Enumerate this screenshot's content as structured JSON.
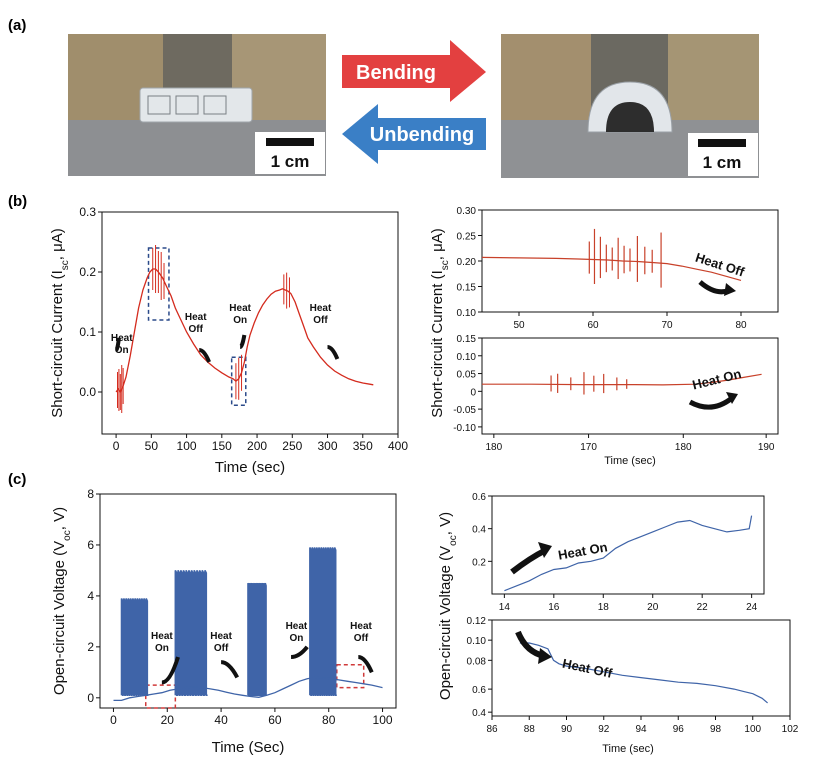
{
  "panels": {
    "a": "(a)",
    "b": "(b)",
    "c": "(c)"
  },
  "photos": {
    "bending_label": "Bending",
    "unbending_label": "Unbending",
    "bending_color": "#e34040",
    "unbending_color": "#3a7fc6",
    "scale_left": "1 cm",
    "scale_right": "1 cm"
  },
  "colors": {
    "current": "#d42b1e",
    "current_zoom": "#c8412a",
    "voltage": "#3f64a8",
    "box_b": "#2b4a8a",
    "box_c": "#d03a3a"
  },
  "chart_data": [
    {
      "id": "b-main",
      "type": "line",
      "xlabel": "Time (sec)",
      "ylabel": "Short-circuit Current (I",
      "ylabel_sub": "sc",
      "ylabel_end": ", μA)",
      "xlim": [
        -20,
        400
      ],
      "ylim": [
        -0.07,
        0.3
      ],
      "xticks": [
        "0",
        "50",
        "100",
        "150",
        "200",
        "250",
        "300",
        "350",
        "400"
      ],
      "yticks": [
        "0.0",
        "0.1",
        "0.2",
        "0.3"
      ],
      "annotations": [
        {
          "line1": "Heat",
          "line2": "On",
          "x": 8,
          "y": 0.085
        },
        {
          "line1": "Heat",
          "line2": "Off",
          "x": 113,
          "y": 0.12
        },
        {
          "line1": "Heat",
          "line2": "On",
          "x": 176,
          "y": 0.135
        },
        {
          "line1": "Heat",
          "line2": "Off",
          "x": 290,
          "y": 0.135
        }
      ],
      "series": [
        {
          "x": [
            0,
            3,
            6,
            10,
            14,
            20,
            26,
            32,
            38,
            44,
            48,
            52,
            56,
            60,
            66,
            72,
            78,
            84,
            90,
            100,
            110,
            120,
            130,
            140,
            150,
            160,
            166,
            170,
            174,
            178,
            182,
            186,
            190,
            196,
            202,
            208,
            214,
            220,
            226,
            232,
            236,
            240,
            244,
            248,
            254,
            260,
            266,
            272,
            280,
            290,
            300,
            310,
            320,
            330,
            340,
            350,
            360,
            365
          ],
          "y": [
            0.0,
            0.005,
            0.0,
            0.01,
            0.025,
            0.06,
            0.1,
            0.14,
            0.17,
            0.19,
            0.2,
            0.205,
            0.205,
            0.2,
            0.19,
            0.175,
            0.16,
            0.14,
            0.125,
            0.1,
            0.08,
            0.062,
            0.05,
            0.04,
            0.032,
            0.025,
            0.022,
            0.018,
            0.022,
            0.032,
            0.05,
            0.075,
            0.095,
            0.115,
            0.132,
            0.145,
            0.155,
            0.163,
            0.168,
            0.17,
            0.172,
            0.17,
            0.168,
            0.164,
            0.15,
            0.13,
            0.11,
            0.09,
            0.075,
            0.058,
            0.045,
            0.035,
            0.028,
            0.022,
            0.018,
            0.015,
            0.013,
            0.012
          ]
        }
      ],
      "spikes": [
        {
          "x": 2,
          "h": 0.03
        },
        {
          "x": 4,
          "h": 0.035
        },
        {
          "x": 6,
          "h": 0.03
        },
        {
          "x": 8,
          "h": 0.04
        },
        {
          "x": 10,
          "h": 0.03
        },
        {
          "x": 52,
          "h": 0.035
        },
        {
          "x": 56,
          "h": 0.04
        },
        {
          "x": 60,
          "h": 0.035
        },
        {
          "x": 64,
          "h": 0.04
        },
        {
          "x": 68,
          "h": 0.03
        },
        {
          "x": 170,
          "h": 0.03
        },
        {
          "x": 174,
          "h": 0.035
        },
        {
          "x": 178,
          "h": 0.03
        },
        {
          "x": 238,
          "h": 0.025
        },
        {
          "x": 242,
          "h": 0.03
        },
        {
          "x": 246,
          "h": 0.025
        }
      ]
    },
    {
      "id": "b-zoom-off",
      "type": "line",
      "xlim": [
        45,
        85
      ],
      "ylim": [
        0.1,
        0.3
      ],
      "xticks": [
        "50",
        "60",
        "70",
        "80"
      ],
      "yticks": [
        "0.10",
        "0.15",
        "0.20",
        "0.25",
        "0.30"
      ],
      "annotation": "Heat Off",
      "series": [
        {
          "x": [
            45,
            50,
            55,
            58,
            60,
            62,
            64,
            66,
            68,
            70,
            72,
            74,
            76,
            78,
            80
          ],
          "y": [
            0.207,
            0.206,
            0.205,
            0.204,
            0.203,
            0.202,
            0.2,
            0.199,
            0.197,
            0.195,
            0.19,
            0.184,
            0.178,
            0.17,
            0.162
          ]
        }
      ],
      "spikes": [
        {
          "x": 59.5,
          "h": 0.035
        },
        {
          "x": 60.2,
          "h": 0.06
        },
        {
          "x": 61,
          "h": 0.045
        },
        {
          "x": 61.8,
          "h": 0.03
        },
        {
          "x": 62.6,
          "h": 0.025
        },
        {
          "x": 63.4,
          "h": 0.045
        },
        {
          "x": 64.2,
          "h": 0.03
        },
        {
          "x": 65,
          "h": 0.025
        },
        {
          "x": 66,
          "h": 0.05
        },
        {
          "x": 67,
          "h": 0.03
        },
        {
          "x": 68,
          "h": 0.025
        },
        {
          "x": 69.2,
          "h": 0.06
        }
      ]
    },
    {
      "id": "b-zoom-on",
      "type": "line",
      "xlabel": "Time (sec)",
      "xlim": [
        175,
        193
      ],
      "ylim": [
        -0.12,
        0.15
      ],
      "xticks": [
        "180",
        "170",
        "180",
        "190"
      ],
      "yticks": [
        "-0.10",
        "-0.05",
        "0",
        "0.05",
        "0.10",
        "0.15"
      ],
      "annotation": "Heat On",
      "series": [
        {
          "x": [
            175,
            178,
            181,
            184,
            186,
            188,
            189,
            190,
            191,
            192
          ],
          "y": [
            0.02,
            0.02,
            0.019,
            0.019,
            0.018,
            0.02,
            0.025,
            0.032,
            0.04,
            0.048
          ]
        }
      ],
      "spikes": [
        {
          "x": 179.2,
          "h": 0.025
        },
        {
          "x": 179.6,
          "h": 0.03
        },
        {
          "x": 180.4,
          "h": 0.02
        },
        {
          "x": 181.2,
          "h": 0.035
        },
        {
          "x": 181.8,
          "h": 0.025
        },
        {
          "x": 182.4,
          "h": 0.03
        },
        {
          "x": 183.2,
          "h": 0.02
        },
        {
          "x": 183.8,
          "h": 0.015
        }
      ]
    },
    {
      "id": "c-main",
      "type": "line",
      "xlabel": "Time (Sec)",
      "ylabel": "Open-circuit Voltage (V",
      "ylabel_sub": "oc",
      "ylabel_end": ", V)",
      "xlim": [
        -5,
        105
      ],
      "ylim": [
        -0.4,
        8
      ],
      "xticks": [
        "0",
        "20",
        "40",
        "60",
        "80",
        "100"
      ],
      "yticks": [
        "0",
        "2",
        "4",
        "6",
        "8"
      ],
      "annotations": [
        {
          "line1": "Heat",
          "line2": "On",
          "x": 18,
          "y": 2.3
        },
        {
          "line1": "Heat",
          "line2": "Off",
          "x": 40,
          "y": 2.3
        },
        {
          "line1": "Heat",
          "line2": "On",
          "x": 68,
          "y": 2.7
        },
        {
          "line1": "Heat",
          "line2": "Off",
          "x": 92,
          "y": 2.7
        }
      ],
      "baseline": {
        "x": [
          0,
          3,
          6,
          9,
          12,
          15,
          18,
          21,
          24,
          27,
          30,
          33,
          36,
          39,
          42,
          45,
          48,
          51,
          54,
          57,
          60,
          63,
          66,
          69,
          72,
          75,
          78,
          81,
          84,
          87,
          90,
          93,
          96,
          100
        ],
        "y": [
          -0.1,
          -0.1,
          0.0,
          0.05,
          0.1,
          0.15,
          0.2,
          0.3,
          0.35,
          0.4,
          0.42,
          0.4,
          0.35,
          0.3,
          0.22,
          0.15,
          0.1,
          0.05,
          0.02,
          0.1,
          0.2,
          0.35,
          0.5,
          0.65,
          0.75,
          0.8,
          0.78,
          0.75,
          0.7,
          0.65,
          0.6,
          0.55,
          0.5,
          0.4
        ]
      },
      "bursts": [
        {
          "x0": 3,
          "x1": 13,
          "top": 3.9
        },
        {
          "x0": 23,
          "x1": 35,
          "top": 5.0
        },
        {
          "x0": 50,
          "x1": 57,
          "top": 4.5
        },
        {
          "x0": 73,
          "x1": 83,
          "top": 5.9
        }
      ]
    },
    {
      "id": "c-zoom-on",
      "type": "line",
      "xlim": [
        13.5,
        24.5
      ],
      "ylim": [
        0,
        0.6
      ],
      "xticks": [
        "14",
        "16",
        "18",
        "20",
        "22",
        "24"
      ],
      "yticks": [
        "0.2",
        "0.4",
        "0.6"
      ],
      "annotation": "Heat On",
      "series": [
        {
          "x": [
            14,
            14.5,
            15,
            15.5,
            16,
            16.5,
            17,
            17.5,
            18,
            18.5,
            19,
            19.5,
            20,
            20.5,
            21,
            21.5,
            22,
            22.5,
            23,
            23.5,
            23.9,
            24
          ],
          "y": [
            0.02,
            0.05,
            0.08,
            0.12,
            0.15,
            0.16,
            0.19,
            0.2,
            0.22,
            0.28,
            0.32,
            0.35,
            0.38,
            0.41,
            0.44,
            0.45,
            0.42,
            0.4,
            0.38,
            0.39,
            0.4,
            0.48
          ]
        }
      ]
    },
    {
      "id": "c-zoom-off",
      "type": "line",
      "xlabel": "Time (sec)",
      "xlim": [
        86,
        102
      ],
      "ylim": [
        0.38,
        0.12
      ],
      "xticks": [
        "86",
        "88",
        "90",
        "92",
        "94",
        "96",
        "98",
        "100",
        "102"
      ],
      "yticks": [
        "0.12",
        "0.10",
        "0.08",
        "0.6",
        "0.4"
      ],
      "annotation": "Heat Off",
      "series": [
        {
          "x": [
            87.5,
            88,
            88.5,
            89,
            89.3,
            89.6,
            90,
            91,
            92,
            93,
            94,
            95,
            96,
            97,
            98,
            99,
            99.5,
            100,
            100.5,
            100.8
          ],
          "y": [
            0.1,
            0.1,
            0.098,
            0.095,
            0.085,
            0.082,
            0.08,
            0.078,
            0.075,
            0.072,
            0.07,
            0.068,
            0.066,
            0.065,
            0.063,
            0.06,
            0.058,
            0.056,
            0.052,
            0.048
          ]
        }
      ]
    }
  ]
}
